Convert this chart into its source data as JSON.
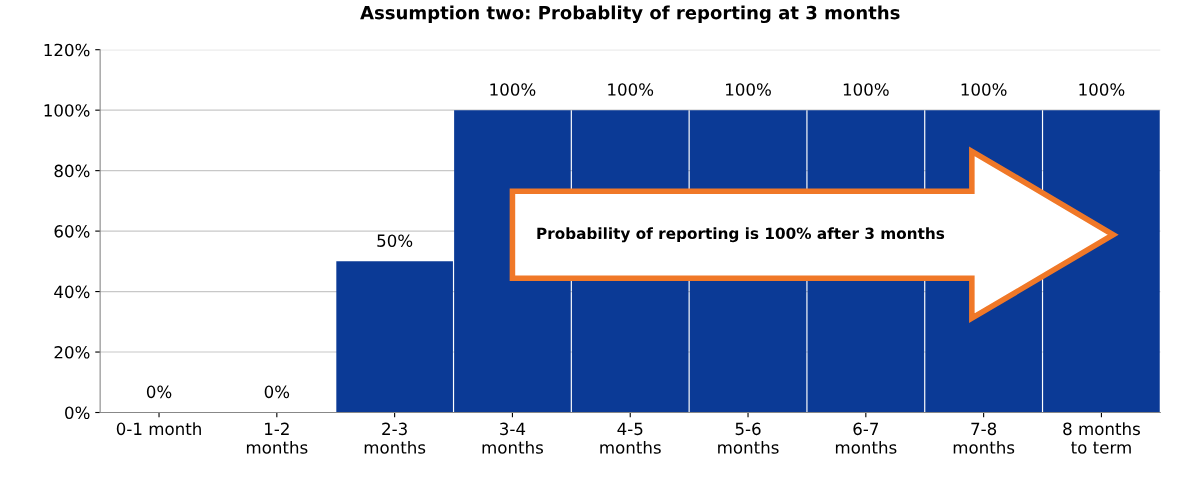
{
  "chart_data": {
    "type": "bar",
    "title": "Assumption two: Probablity of reporting at 3 months",
    "categories": [
      "0-1 month",
      "1-2\nmonths",
      "2-3\nmonths",
      "3-4\nmonths",
      "4-5\nmonths",
      "5-6\nmonths",
      "6-7\nmonths",
      "7-8\nmonths",
      "8 months\nto term"
    ],
    "values": [
      0,
      0,
      50,
      100,
      100,
      100,
      100,
      100,
      100
    ],
    "value_labels": [
      "0%",
      "0%",
      "50%",
      "100%",
      "100%",
      "100%",
      "100%",
      "100%",
      "100%"
    ],
    "color": "#0b3a96",
    "ylim": [
      0,
      120
    ],
    "yticks": [
      {
        "value": 0,
        "label": "0%"
      },
      {
        "value": 20,
        "label": "20%"
      },
      {
        "value": 40,
        "label": "40%"
      },
      {
        "value": 60,
        "label": "60%"
      },
      {
        "value": 80,
        "label": "80%"
      },
      {
        "value": 100,
        "label": "100%"
      },
      {
        "value": 120,
        "label": "120%"
      }
    ],
    "grid": "y",
    "legend": false,
    "annotations": [
      "Probability of reporting is 100% after 3 months"
    ]
  }
}
